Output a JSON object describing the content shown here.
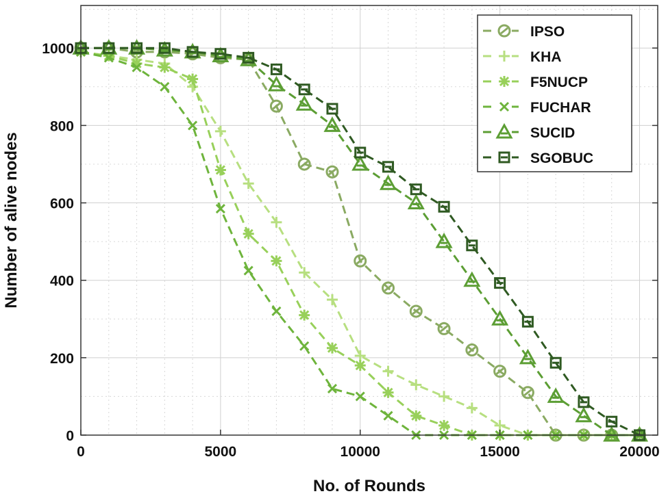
{
  "chart_data": {
    "type": "line",
    "title": "",
    "xlabel": "No. of Rounds",
    "ylabel": "Number of alive nodes",
    "xlim": [
      0,
      20650
    ],
    "ylim": [
      0,
      1110
    ],
    "xticks": [
      0,
      5000,
      10000,
      15000,
      20000
    ],
    "yticks": [
      0,
      200,
      400,
      600,
      800,
      1000
    ],
    "xtick_labels": [
      "0",
      "5000",
      "10000",
      "15000",
      "20000"
    ],
    "ytick_labels": [
      "0",
      "200",
      "400",
      "600",
      "800",
      "1000"
    ],
    "grid": true,
    "legend_position": "top-right",
    "x": [
      0,
      1000,
      2000,
      3000,
      4000,
      5000,
      6000,
      7000,
      8000,
      9000,
      10000,
      11000,
      12000,
      13000,
      14000,
      15000,
      16000,
      17000,
      18000,
      19000,
      20000
    ],
    "series": [
      {
        "name": "IPSO",
        "color": "#8aaa62",
        "marker": "circle-line",
        "values": [
          1000,
          1000,
          990,
          990,
          985,
          975,
          970,
          850,
          700,
          680,
          450,
          380,
          320,
          275,
          220,
          165,
          110,
          0,
          0,
          0,
          0
        ]
      },
      {
        "name": "KHA",
        "color": "#b7df80",
        "marker": "plus",
        "values": [
          990,
          980,
          970,
          960,
          900,
          785,
          650,
          550,
          420,
          350,
          205,
          165,
          130,
          100,
          70,
          25,
          0,
          0,
          0,
          0,
          0
        ]
      },
      {
        "name": "F5NUCP",
        "color": "#98d05a",
        "marker": "asterisk",
        "values": [
          990,
          980,
          960,
          950,
          920,
          685,
          520,
          450,
          310,
          225,
          180,
          110,
          50,
          25,
          0,
          0,
          0,
          0,
          0,
          0,
          0
        ]
      },
      {
        "name": "FUCHAR",
        "color": "#6eb43c",
        "marker": "x",
        "values": [
          990,
          975,
          950,
          900,
          800,
          585,
          425,
          320,
          230,
          120,
          100,
          50,
          0,
          0,
          0,
          0,
          0,
          0,
          0,
          0,
          0
        ]
      },
      {
        "name": "SUCID",
        "color": "#5c9e34",
        "marker": "triangle",
        "values": [
          1000,
          1000,
          1000,
          995,
          990,
          980,
          970,
          905,
          855,
          800,
          700,
          650,
          600,
          500,
          400,
          300,
          200,
          100,
          50,
          0,
          0
        ]
      },
      {
        "name": "SGOBUC",
        "color": "#2f5a22",
        "marker": "square",
        "values": [
          1000,
          1000,
          1000,
          1000,
          990,
          985,
          975,
          945,
          893,
          843,
          730,
          693,
          635,
          590,
          490,
          393,
          293,
          187,
          85,
          35,
          0
        ]
      }
    ]
  }
}
